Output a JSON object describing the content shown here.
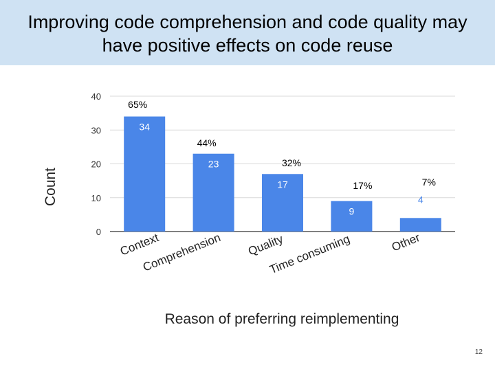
{
  "slide": {
    "title": "Improving code comprehension and code quality may have positive effects on code reuse",
    "page_number": "12",
    "title_background": "#cfe2f3"
  },
  "chart_data": {
    "type": "bar",
    "title": "",
    "xlabel": "Reason of preferring reimplementing",
    "ylabel": "Count",
    "categories": [
      "Context",
      "Comprehension",
      "Quality",
      "Time consuming",
      "Other"
    ],
    "values": [
      34,
      23,
      17,
      9,
      4
    ],
    "percent_labels": [
      "65%",
      "44%",
      "32%",
      "17%",
      "7%"
    ],
    "ylim": [
      0,
      40
    ],
    "yticks": [
      0,
      10,
      20,
      30,
      40
    ],
    "grid": true,
    "bar_color": "#4a86e8",
    "gridline_color": "#d9d9d9"
  }
}
